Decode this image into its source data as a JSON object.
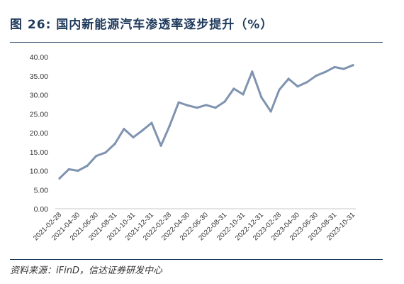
{
  "figure": {
    "title": "图 26:  国内新能源汽车渗透率逐步提升（%）",
    "source": "资料来源：iFinD，信达证券研发中心"
  },
  "chart_data": {
    "type": "line",
    "title": "",
    "xlabel": "",
    "ylabel": "",
    "ylim": [
      0,
      40
    ],
    "yticks": [
      "0.00",
      "5.00",
      "10.00",
      "15.00",
      "20.00",
      "25.00",
      "30.00",
      "35.00",
      "40.00"
    ],
    "x_tick_labels": [
      "2021-02-28",
      "2021-04-30",
      "2021-06-30",
      "2021-08-31",
      "2021-10-31",
      "2021-12-31",
      "2022-02-28",
      "2022-04-30",
      "2022-06-30",
      "2022-08-31",
      "2022-10-31",
      "2022-12-31",
      "2023-02-28",
      "2023-04-30",
      "2023-06-30",
      "2023-08-31",
      "2023-10-31"
    ],
    "grid": false,
    "line_color": "#7f93b0",
    "series": [
      {
        "name": "",
        "x": [
          "2021-02-28",
          "2021-03-31",
          "2021-04-30",
          "2021-05-31",
          "2021-06-30",
          "2021-07-31",
          "2021-08-31",
          "2021-09-30",
          "2021-10-31",
          "2021-11-30",
          "2021-12-31",
          "2022-01-31",
          "2022-02-28",
          "2022-03-31",
          "2022-04-30",
          "2022-05-31",
          "2022-06-30",
          "2022-07-31",
          "2022-08-31",
          "2022-09-30",
          "2022-10-31",
          "2022-11-30",
          "2022-12-31",
          "2023-01-31",
          "2023-02-28",
          "2023-03-31",
          "2023-04-30",
          "2023-05-31",
          "2023-06-30",
          "2023-07-31",
          "2023-08-31",
          "2023-09-30",
          "2023-10-31"
        ],
        "values": [
          8.0,
          10.4,
          10.0,
          11.3,
          13.9,
          14.8,
          17.1,
          21.0,
          18.8,
          20.6,
          22.6,
          16.6,
          21.7,
          28.0,
          27.2,
          26.6,
          27.3,
          26.6,
          28.2,
          31.6,
          30.1,
          36.1,
          29.3,
          25.6,
          31.3,
          34.2,
          32.2,
          33.3,
          35.0,
          36.0,
          37.3,
          36.8,
          37.8
        ]
      }
    ]
  }
}
